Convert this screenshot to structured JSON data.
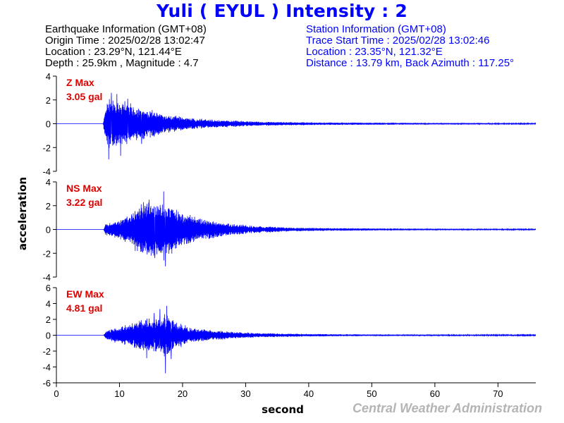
{
  "title": "Yuli ( EYUL ) Intensity : 2",
  "earthquake_info": {
    "heading": "Earthquake Information  (GMT+08)",
    "origin_time": "Origin Time : 2025/02/28 13:02:47",
    "location": "Location : 23.29°N, 121.44°E",
    "depth_magnitude": "Depth : 25.9km , Magnitude : 4.7"
  },
  "station_info": {
    "heading": "Station Information  (GMT+08)",
    "trace_start": "Trace Start Time : 2025/02/28 13:02:46",
    "location": "Location : 23.35°N, 121.32°E",
    "distance": "Distance : 13.79 km, Back Azimuth : 117.25°"
  },
  "footer": "Central Weather Administration",
  "colors": {
    "title": "#0000ff",
    "trace": "#0000ff",
    "max_label": "#e00000",
    "station_text": "#0000ff",
    "footer": "#b4b4b4"
  },
  "chart_data": {
    "type": "line",
    "xlabel": "second",
    "ylabel": "acceleration",
    "xlim": [
      0,
      76
    ],
    "x_ticks": [
      0,
      10,
      20,
      30,
      40,
      50,
      60,
      70
    ],
    "panels": [
      {
        "name": "Z",
        "max_label": "Z Max",
        "max_value": "3.05 gal",
        "ylim": [
          -4,
          4
        ],
        "y_ticks": [
          -4,
          -2,
          0,
          2,
          4
        ],
        "envelope": [
          [
            7.4,
            0.05
          ],
          [
            7.6,
            0.9
          ],
          [
            8.0,
            2.1
          ],
          [
            8.6,
            2.7
          ],
          [
            9.5,
            2.4
          ],
          [
            10.5,
            2.2
          ],
          [
            12.0,
            1.8
          ],
          [
            14.0,
            1.5
          ],
          [
            16.0,
            1.1
          ],
          [
            18.0,
            0.8
          ],
          [
            20.0,
            0.65
          ],
          [
            23.0,
            0.45
          ],
          [
            27.0,
            0.32
          ],
          [
            32.0,
            0.2
          ],
          [
            40.0,
            0.13
          ],
          [
            50.0,
            0.1
          ],
          [
            60.0,
            0.08
          ],
          [
            76.0,
            0.06
          ]
        ],
        "peaks": [
          [
            8.3,
            -3.0
          ],
          [
            8.7,
            2.6
          ],
          [
            10.2,
            -2.7
          ],
          [
            9.6,
            2.5
          ],
          [
            11.3,
            2.1
          ],
          [
            13.5,
            -1.7
          ]
        ]
      },
      {
        "name": "NS",
        "max_label": "NS Max",
        "max_value": "3.22 gal",
        "ylim": [
          -4,
          4
        ],
        "y_ticks": [
          -4,
          -2,
          0,
          2,
          4
        ],
        "envelope": [
          [
            7.5,
            0.05
          ],
          [
            7.8,
            0.55
          ],
          [
            9.0,
            0.8
          ],
          [
            10.5,
            1.0
          ],
          [
            12.0,
            1.6
          ],
          [
            13.5,
            2.4
          ],
          [
            15.0,
            2.6
          ],
          [
            16.5,
            2.4
          ],
          [
            17.5,
            2.7
          ],
          [
            19.0,
            1.8
          ],
          [
            21.0,
            1.3
          ],
          [
            24.0,
            0.9
          ],
          [
            27.0,
            0.6
          ],
          [
            31.0,
            0.35
          ],
          [
            36.0,
            0.2
          ],
          [
            45.0,
            0.12
          ],
          [
            60.0,
            0.08
          ],
          [
            76.0,
            0.06
          ]
        ],
        "peaks": [
          [
            17.3,
            -3.1
          ],
          [
            17.0,
            3.2
          ],
          [
            13.8,
            2.3
          ],
          [
            15.6,
            -2.4
          ],
          [
            14.7,
            2.5
          ],
          [
            12.5,
            -1.8
          ]
        ]
      },
      {
        "name": "EW",
        "max_label": "EW Max",
        "max_value": "4.81 gal",
        "ylim": [
          -6,
          6
        ],
        "y_ticks": [
          -6,
          -4,
          -2,
          0,
          2,
          4,
          6
        ],
        "envelope": [
          [
            7.5,
            0.05
          ],
          [
            7.8,
            0.5
          ],
          [
            9.0,
            1.0
          ],
          [
            10.5,
            1.3
          ],
          [
            12.0,
            1.7
          ],
          [
            14.0,
            2.3
          ],
          [
            16.0,
            2.5
          ],
          [
            17.5,
            3.0
          ],
          [
            19.0,
            1.8
          ],
          [
            21.0,
            1.2
          ],
          [
            24.0,
            0.8
          ],
          [
            28.0,
            0.5
          ],
          [
            32.0,
            0.3
          ],
          [
            40.0,
            0.18
          ],
          [
            50.0,
            0.12
          ],
          [
            76.0,
            0.08
          ]
        ],
        "peaks": [
          [
            17.3,
            -4.8
          ],
          [
            17.5,
            3.7
          ],
          [
            16.4,
            3.3
          ],
          [
            14.3,
            -2.9
          ],
          [
            15.5,
            2.8
          ],
          [
            18.2,
            -3.0
          ]
        ]
      }
    ]
  }
}
